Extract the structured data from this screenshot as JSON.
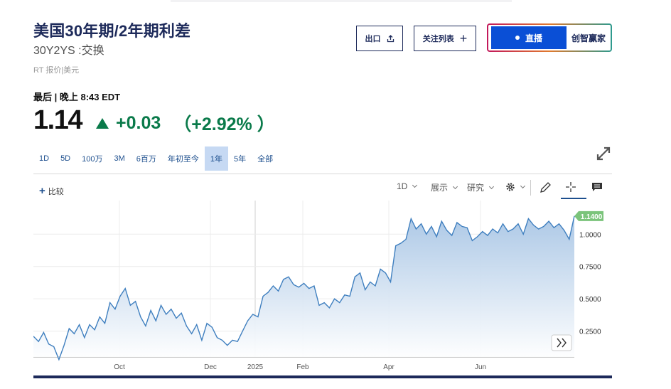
{
  "header": {
    "title": "美国30年期/2年期利差",
    "subtitle": "30Y2YS :交换",
    "quote_source": "RT 报价|美元"
  },
  "actions": {
    "export_label": "出口",
    "watchlist_label": "关注列表",
    "live_label": "直播",
    "brand_label": "创智赢家"
  },
  "quote": {
    "last_label": "最后 | 晚上 8:43 EDT",
    "price": "1.14",
    "change": "+0.03",
    "change_pct": "（+2.92% ）",
    "direction": "up",
    "up_color": "#0a7a4a"
  },
  "ranges": [
    "1D",
    "5D",
    "100万",
    "3M",
    "6百万",
    "年初至今",
    "1年",
    "5年",
    "全部"
  ],
  "active_range": "1年",
  "chart_toolbar": {
    "compare_label": "比较",
    "interval_label": "1D",
    "display_label": "展示",
    "research_label": "研究",
    "icons": [
      "gear-icon",
      "pencil-icon",
      "crosshair-icon",
      "comment-icon"
    ]
  },
  "chart_data": {
    "type": "area",
    "x_ticks": [
      "Oct",
      "Dec",
      "2025",
      "Feb",
      "Apr",
      "Jun"
    ],
    "y_ticks": [
      "1.0000",
      "0.7500",
      "0.5000",
      "0.2500"
    ],
    "last_value_label": "1.1400",
    "ylim": [
      0.05,
      1.26
    ],
    "grid": true,
    "series": [
      {
        "values": [
          0.21,
          0.17,
          0.24,
          0.15,
          0.13,
          0.03,
          0.14,
          0.27,
          0.23,
          0.3,
          0.2,
          0.3,
          0.26,
          0.36,
          0.31,
          0.47,
          0.42,
          0.52,
          0.58,
          0.45,
          0.48,
          0.36,
          0.29,
          0.41,
          0.33,
          0.45,
          0.38,
          0.42,
          0.35,
          0.39,
          0.29,
          0.23,
          0.3,
          0.18,
          0.31,
          0.28,
          0.2,
          0.18,
          0.14,
          0.18,
          0.17,
          0.25,
          0.33,
          0.38,
          0.36,
          0.52,
          0.55,
          0.6,
          0.56,
          0.65,
          0.67,
          0.61,
          0.59,
          0.62,
          0.58,
          0.6,
          0.45,
          0.47,
          0.43,
          0.5,
          0.47,
          0.53,
          0.52,
          0.67,
          0.7,
          0.57,
          0.63,
          0.6,
          0.73,
          0.7,
          0.63,
          0.91,
          0.93,
          0.96,
          1.12,
          1.04,
          1.08,
          1.0,
          1.06,
          0.98,
          1.1,
          1.03,
          0.99,
          1.09,
          1.06,
          1.05,
          0.95,
          0.98,
          1.02,
          0.99,
          1.04,
          1.01,
          1.08,
          1.02,
          1.04,
          1.08,
          1.0,
          1.12,
          1.07,
          1.04,
          1.06,
          1.1,
          1.05,
          1.08,
          1.03,
          0.96,
          1.14
        ]
      }
    ],
    "colors": {
      "line": "#3f7fbf",
      "fill_top": "#a9c6e5",
      "fill_bottom": "#ffffff",
      "last_badge": "#7bc47b"
    }
  }
}
